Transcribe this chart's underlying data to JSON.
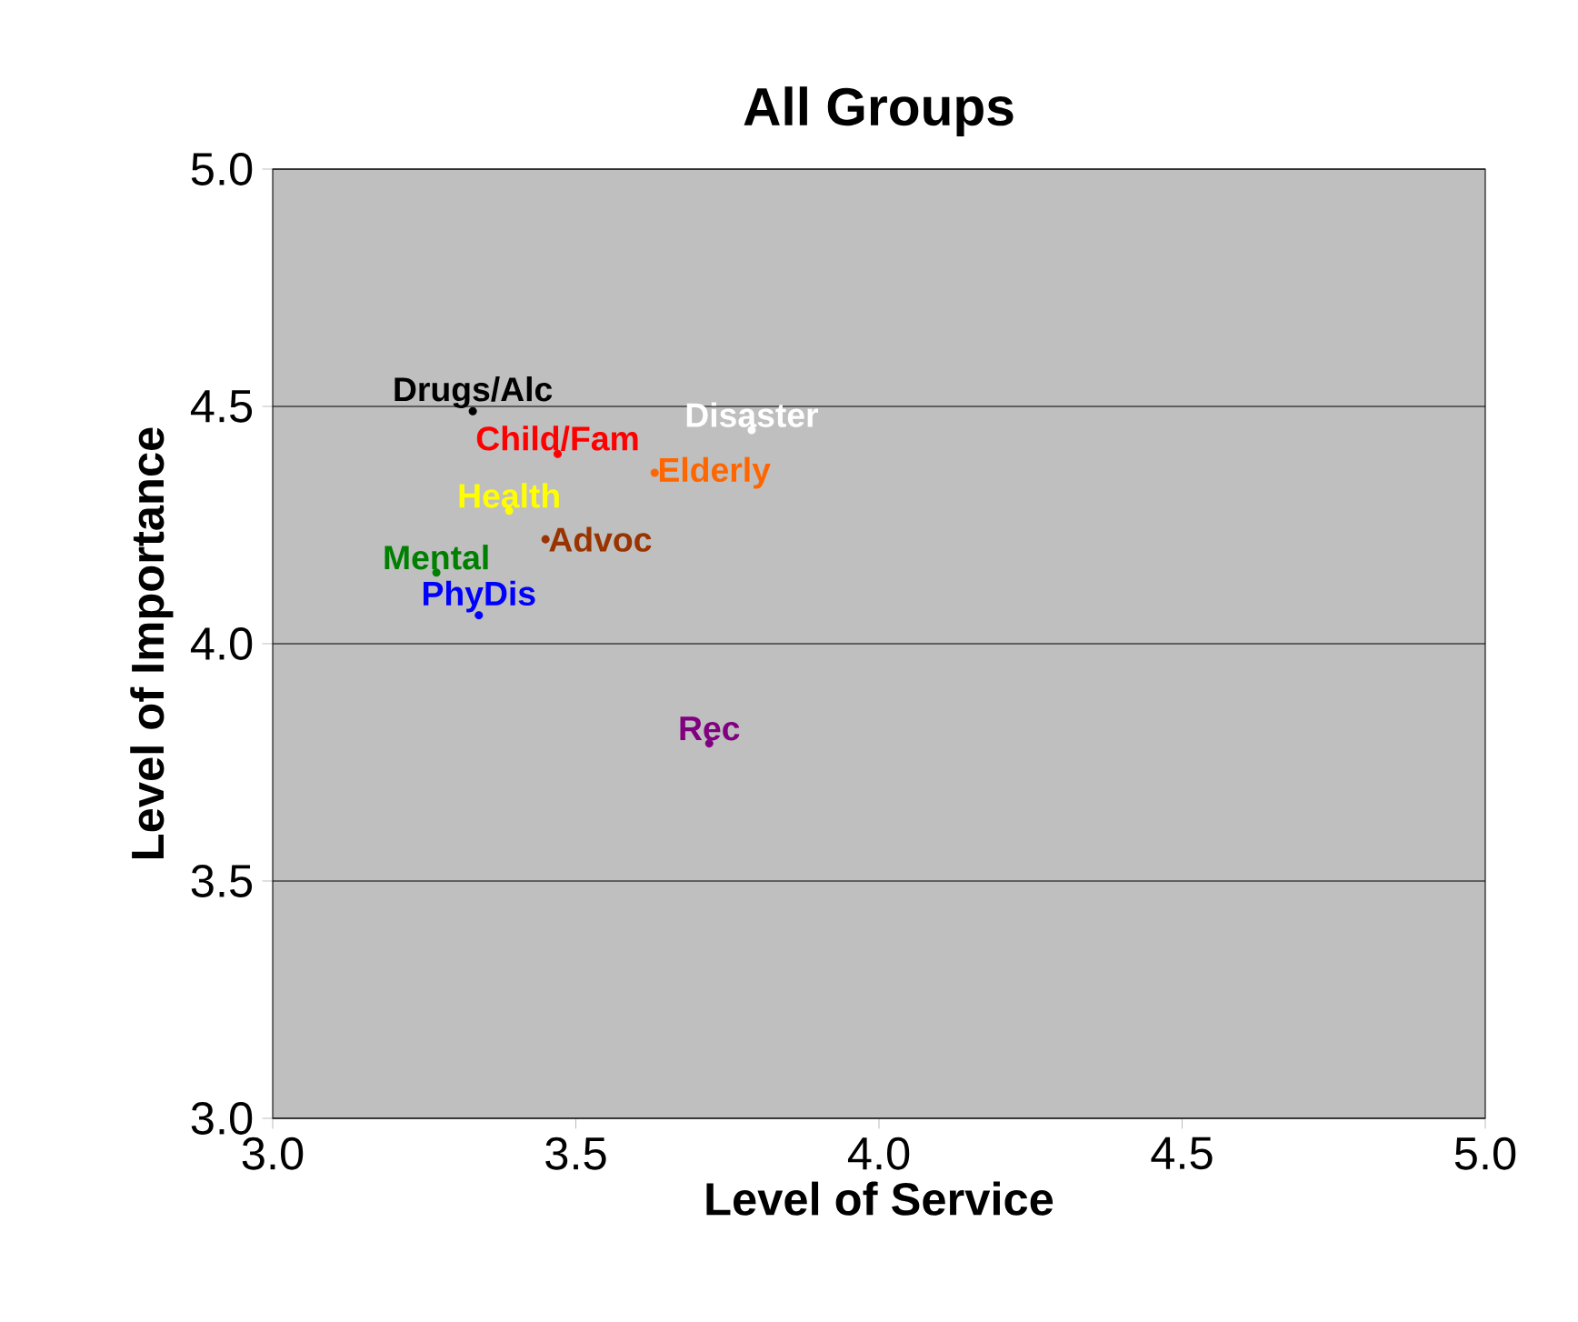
{
  "chart_data": {
    "type": "scatter",
    "title": "All Groups",
    "xlabel": "Level of Service",
    "ylabel": "Level of Importance",
    "xlim": [
      3.0,
      5.0
    ],
    "ylim": [
      3.0,
      5.0
    ],
    "xticks": [
      {
        "value": 3.0,
        "label": "3.0"
      },
      {
        "value": 3.5,
        "label": "3.5"
      },
      {
        "value": 4.0,
        "label": "4.0"
      },
      {
        "value": 4.5,
        "label": "4.5"
      },
      {
        "value": 5.0,
        "label": "5.0"
      }
    ],
    "yticks": [
      {
        "value": 3.0,
        "label": "3.0"
      },
      {
        "value": 3.5,
        "label": "3.5"
      },
      {
        "value": 4.0,
        "label": "4.0"
      },
      {
        "value": 4.5,
        "label": "4.5"
      },
      {
        "value": 5.0,
        "label": "5.0"
      }
    ],
    "grid": "y",
    "marker": "circle",
    "series": [
      {
        "name": "Drugs/Alc",
        "color": "#000000",
        "x": [
          3.33
        ],
        "values": [
          4.49
        ]
      },
      {
        "name": "Child/Fam",
        "color": "#ff0000",
        "x": [
          3.47
        ],
        "values": [
          4.4
        ]
      },
      {
        "name": "Disaster",
        "color": "#ffffff",
        "x": [
          3.79
        ],
        "values": [
          4.45
        ]
      },
      {
        "name": "Elderly",
        "color": "#ff6600",
        "x": [
          3.63
        ],
        "values": [
          4.36
        ]
      },
      {
        "name": "Health",
        "color": "#ffff00",
        "x": [
          3.39
        ],
        "values": [
          4.28
        ]
      },
      {
        "name": "Advoc",
        "color": "#993300",
        "x": [
          3.45
        ],
        "values": [
          4.22
        ]
      },
      {
        "name": "Mental",
        "color": "#008000",
        "x": [
          3.27
        ],
        "values": [
          4.15
        ]
      },
      {
        "name": "PhyDis",
        "color": "#0000ff",
        "x": [
          3.34
        ],
        "values": [
          4.06
        ]
      },
      {
        "name": "Rec",
        "color": "#800080",
        "x": [
          3.72
        ],
        "values": [
          3.79
        ]
      }
    ]
  }
}
